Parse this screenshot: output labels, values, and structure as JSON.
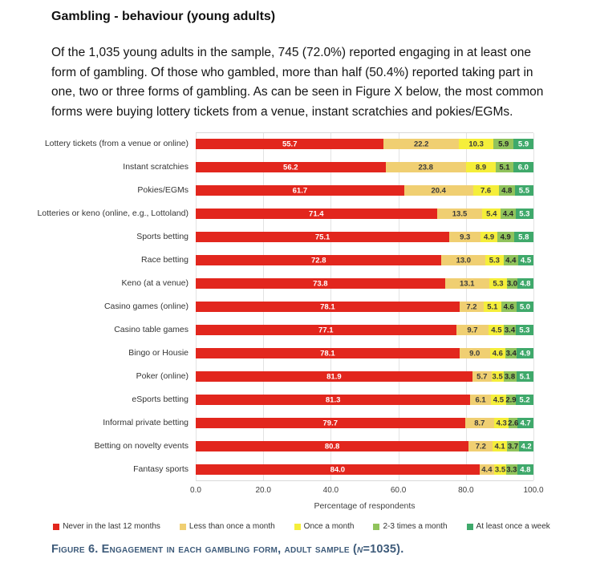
{
  "document": {
    "title": "Gambling - behaviour (young adults)",
    "paragraph": "Of the 1,035 young adults in the sample, 745 (72.0%) reported engaging in at least one form of gambling. Of those who gambled, more than half (50.4%) reported taking part in one, two or three forms of gambling. As can be seen in Figure X below, the most common forms were buying lottery tickets from a venue, instant scratchies and pokies/EGMs."
  },
  "chart_data": {
    "type": "bar",
    "orientation": "horizontal",
    "stacked": true,
    "xlabel": "Percentage of respondents",
    "xlim": [
      0,
      100
    ],
    "xticks": [
      "0.0",
      "20.0",
      "40.0",
      "60.0",
      "80.0",
      "100.0"
    ],
    "grid": true,
    "legend_position": "bottom",
    "categories": [
      "Lottery tickets (from a venue or online)",
      "Instant scratchies",
      "Pokies/EGMs",
      "Lotteries or keno (online, e.g., Lottoland)",
      "Sports betting",
      "Race betting",
      "Keno (at a venue)",
      "Casino games (online)",
      "Casino table games",
      "Bingo or Housie",
      "Poker (online)",
      "eSports betting",
      "Informal private betting",
      "Betting on novelty events",
      "Fantasy sports"
    ],
    "series": [
      {
        "name": "Never in the last 12 months",
        "color": "#e2261d",
        "label_color": "#ffffff",
        "values": [
          55.7,
          56.2,
          61.7,
          71.4,
          75.1,
          72.8,
          73.8,
          78.1,
          77.1,
          78.1,
          81.9,
          81.3,
          79.7,
          80.8,
          84.0
        ]
      },
      {
        "name": "Less than once a month",
        "color": "#f0cf72",
        "label_color": "#3a3a3a",
        "values": [
          22.2,
          23.8,
          20.4,
          13.5,
          9.3,
          13.0,
          13.1,
          7.2,
          9.7,
          9.0,
          5.7,
          6.1,
          8.7,
          7.2,
          4.4
        ]
      },
      {
        "name": "Once a month",
        "color": "#f5ee3a",
        "label_color": "#3a3a3a",
        "values": [
          10.3,
          8.9,
          7.6,
          5.4,
          4.9,
          5.3,
          5.3,
          5.1,
          4.5,
          4.6,
          3.5,
          4.5,
          4.3,
          4.1,
          3.5
        ]
      },
      {
        "name": "2-3 times a month",
        "color": "#90c35c",
        "label_color": "#262626",
        "values": [
          5.9,
          5.1,
          4.8,
          4.4,
          4.9,
          4.4,
          3.0,
          4.6,
          3.4,
          3.4,
          3.8,
          2.9,
          2.6,
          3.7,
          3.3
        ]
      },
      {
        "name": "At least once a week",
        "color": "#3fa96b",
        "label_color": "#ffffff",
        "values": [
          5.9,
          6.0,
          5.5,
          5.3,
          5.8,
          4.5,
          4.8,
          5.0,
          5.3,
          4.9,
          5.1,
          5.2,
          4.7,
          4.2,
          4.8
        ]
      }
    ]
  },
  "caption": {
    "prefix": "Figure 6. Engagement in each gambling form, adult sample (",
    "n": "n",
    "suffix": "=1035)."
  },
  "colors": {
    "caption_text": "#3e5b7a",
    "grid_line": "#e3e3e3",
    "axis_text": "#3f3f3f"
  }
}
